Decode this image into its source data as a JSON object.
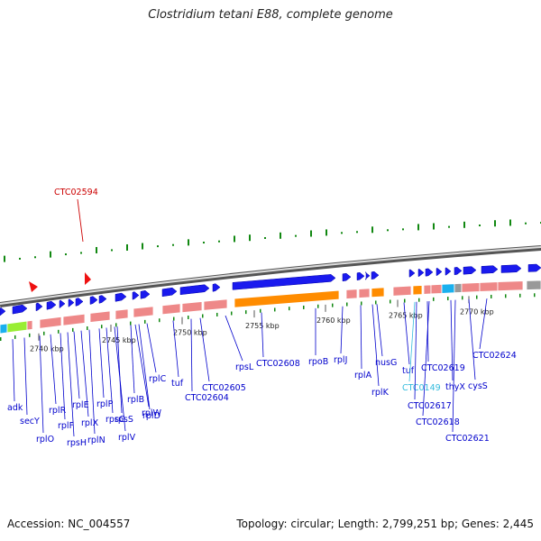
{
  "title": "Clostridium tetani E88, complete genome",
  "footer": {
    "accession": "Accession: NC_004557",
    "summary": "Topology: circular; Length: 2,799,251 bp; Genes: 2,445"
  },
  "colors": {
    "gene_blue": "#1a1aee",
    "gene_pink": "#ee8888",
    "gene_orange": "#ff8c00",
    "gene_cyan": "#1ab0ee",
    "gene_lime": "#99ee33",
    "gene_grey": "#999999",
    "label_blue": "#0000cc",
    "label_red": "#cc0000",
    "label_cyan": "#33bbdd",
    "skew_green": "#118811"
  },
  "kbp_ticks": [
    "2740 kbp",
    "2745 kbp",
    "2750 kbp",
    "2755 kbp",
    "2760 kbp",
    "2765 kbp",
    "2770 kbp"
  ],
  "top_marker": {
    "name": "CTC02594",
    "color": "red"
  },
  "gene_labels": [
    {
      "name": "adk",
      "color": "blue"
    },
    {
      "name": "secY",
      "color": "blue"
    },
    {
      "name": "rplO",
      "color": "blue"
    },
    {
      "name": "rplR",
      "color": "blue"
    },
    {
      "name": "rplF",
      "color": "blue"
    },
    {
      "name": "rpsH",
      "color": "blue"
    },
    {
      "name": "rplE",
      "color": "blue"
    },
    {
      "name": "rplX",
      "color": "blue"
    },
    {
      "name": "rplN",
      "color": "blue"
    },
    {
      "name": "rplP",
      "color": "blue"
    },
    {
      "name": "rpsC",
      "color": "blue"
    },
    {
      "name": "rplV",
      "color": "blue"
    },
    {
      "name": "rpsS",
      "color": "blue"
    },
    {
      "name": "rplB",
      "color": "blue"
    },
    {
      "name": "rplW",
      "color": "blue"
    },
    {
      "name": "rplD",
      "color": "blue"
    },
    {
      "name": "rplC",
      "color": "blue"
    },
    {
      "name": "tuf",
      "color": "blue"
    },
    {
      "name": "CTC02605",
      "color": "blue"
    },
    {
      "name": "CTC02604",
      "color": "blue"
    },
    {
      "name": "rpsL",
      "color": "blue"
    },
    {
      "name": "CTC02608",
      "color": "blue"
    },
    {
      "name": "rpoB",
      "color": "blue"
    },
    {
      "name": "rplJ",
      "color": "blue"
    },
    {
      "name": "rplA",
      "color": "blue"
    },
    {
      "name": "rplK",
      "color": "blue"
    },
    {
      "name": "nusG",
      "color": "blue"
    },
    {
      "name": "tuf",
      "color": "blue"
    },
    {
      "name": "CTC0149",
      "color": "cyan"
    },
    {
      "name": "CTC02617",
      "color": "blue"
    },
    {
      "name": "CTC02619",
      "color": "blue"
    },
    {
      "name": "CTC02618",
      "color": "blue"
    },
    {
      "name": "thyX",
      "color": "blue"
    },
    {
      "name": "cysS",
      "color": "blue"
    },
    {
      "name": "CTC02621",
      "color": "blue"
    },
    {
      "name": "CTC02624",
      "color": "blue"
    }
  ]
}
